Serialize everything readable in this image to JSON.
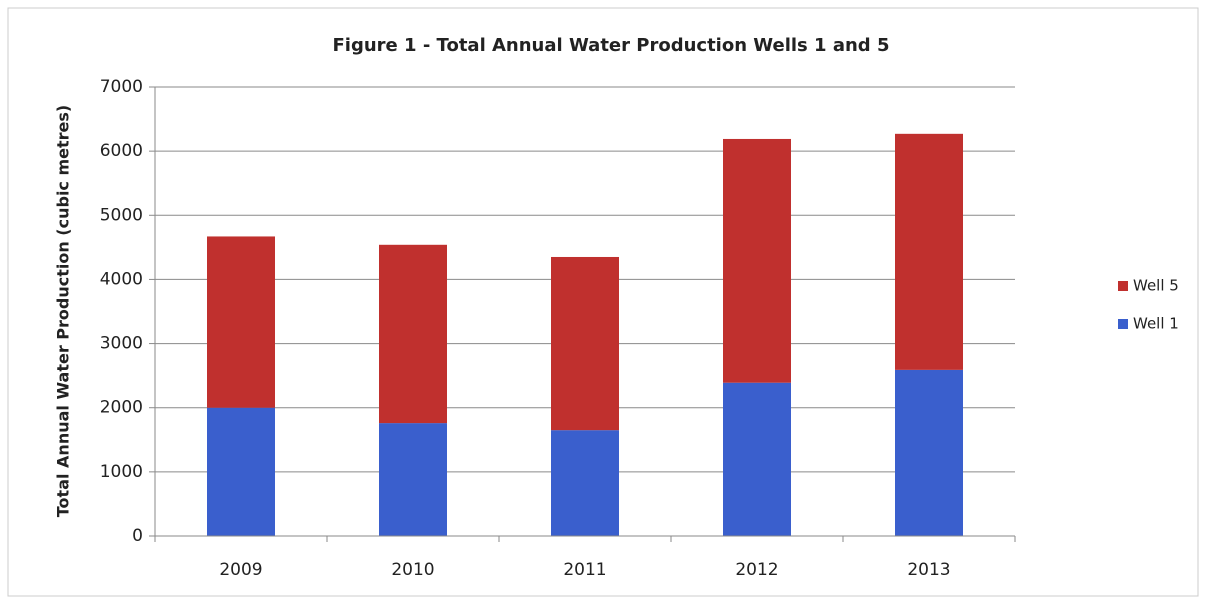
{
  "chart_data": {
    "type": "stacked_bar",
    "title": "Figure 1 - Total Annual Water Production Wells 1 and 5",
    "y_label": "Total Annual Water Production (cubic metres)",
    "categories": [
      "2009",
      "2010",
      "2011",
      "2012",
      "2013"
    ],
    "series": [
      {
        "name": "Well 1",
        "color": "#3a5fcd",
        "values": [
          2000,
          1760,
          1650,
          2390,
          2590
        ]
      },
      {
        "name": "Well 5",
        "color": "#c0302e",
        "values": [
          2670,
          2780,
          2700,
          3800,
          3680
        ]
      }
    ],
    "ylim": [
      0,
      7000
    ],
    "yticks": [
      0,
      1000,
      2000,
      3000,
      4000,
      5000,
      6000,
      7000
    ],
    "grid": true,
    "legend": "right"
  }
}
